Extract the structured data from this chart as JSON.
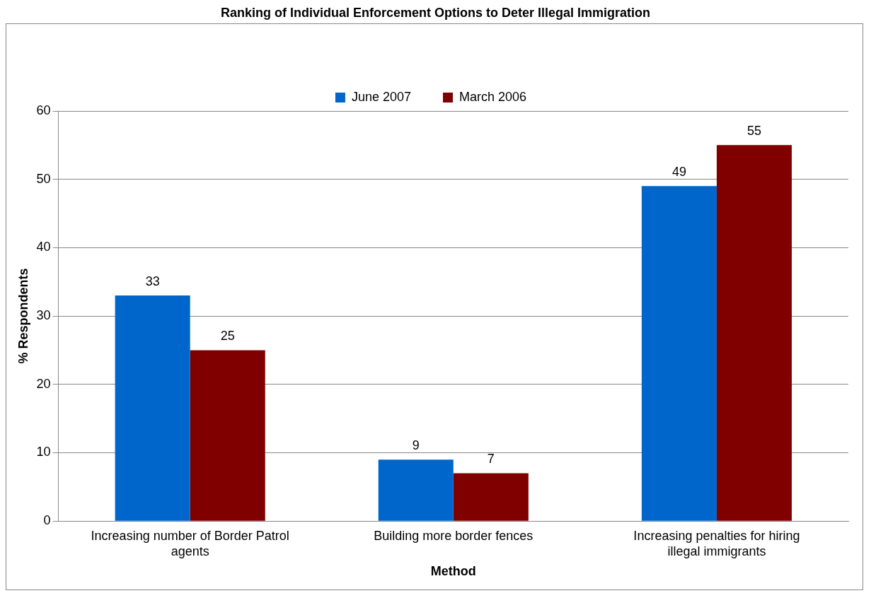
{
  "chart_data": {
    "type": "bar",
    "title": "Ranking of Individual Enforcement Options to Deter Illegal Immigration",
    "xlabel": "Method",
    "ylabel": "% Respondents",
    "categories": [
      "Increasing number of Border Patrol agents",
      "Building more border fences",
      "Increasing penalties for hiring illegal immigrants"
    ],
    "series": [
      {
        "name": "June 2007",
        "color": "#0066cc",
        "values": [
          33,
          9,
          49
        ]
      },
      {
        "name": "March 2006",
        "color": "#800000",
        "values": [
          25,
          7,
          55
        ]
      }
    ],
    "ylim": [
      0,
      60
    ],
    "yticks": [
      0,
      10,
      20,
      30,
      40,
      50,
      60
    ],
    "grid": "y",
    "legend": "top",
    "data_labels": true
  }
}
